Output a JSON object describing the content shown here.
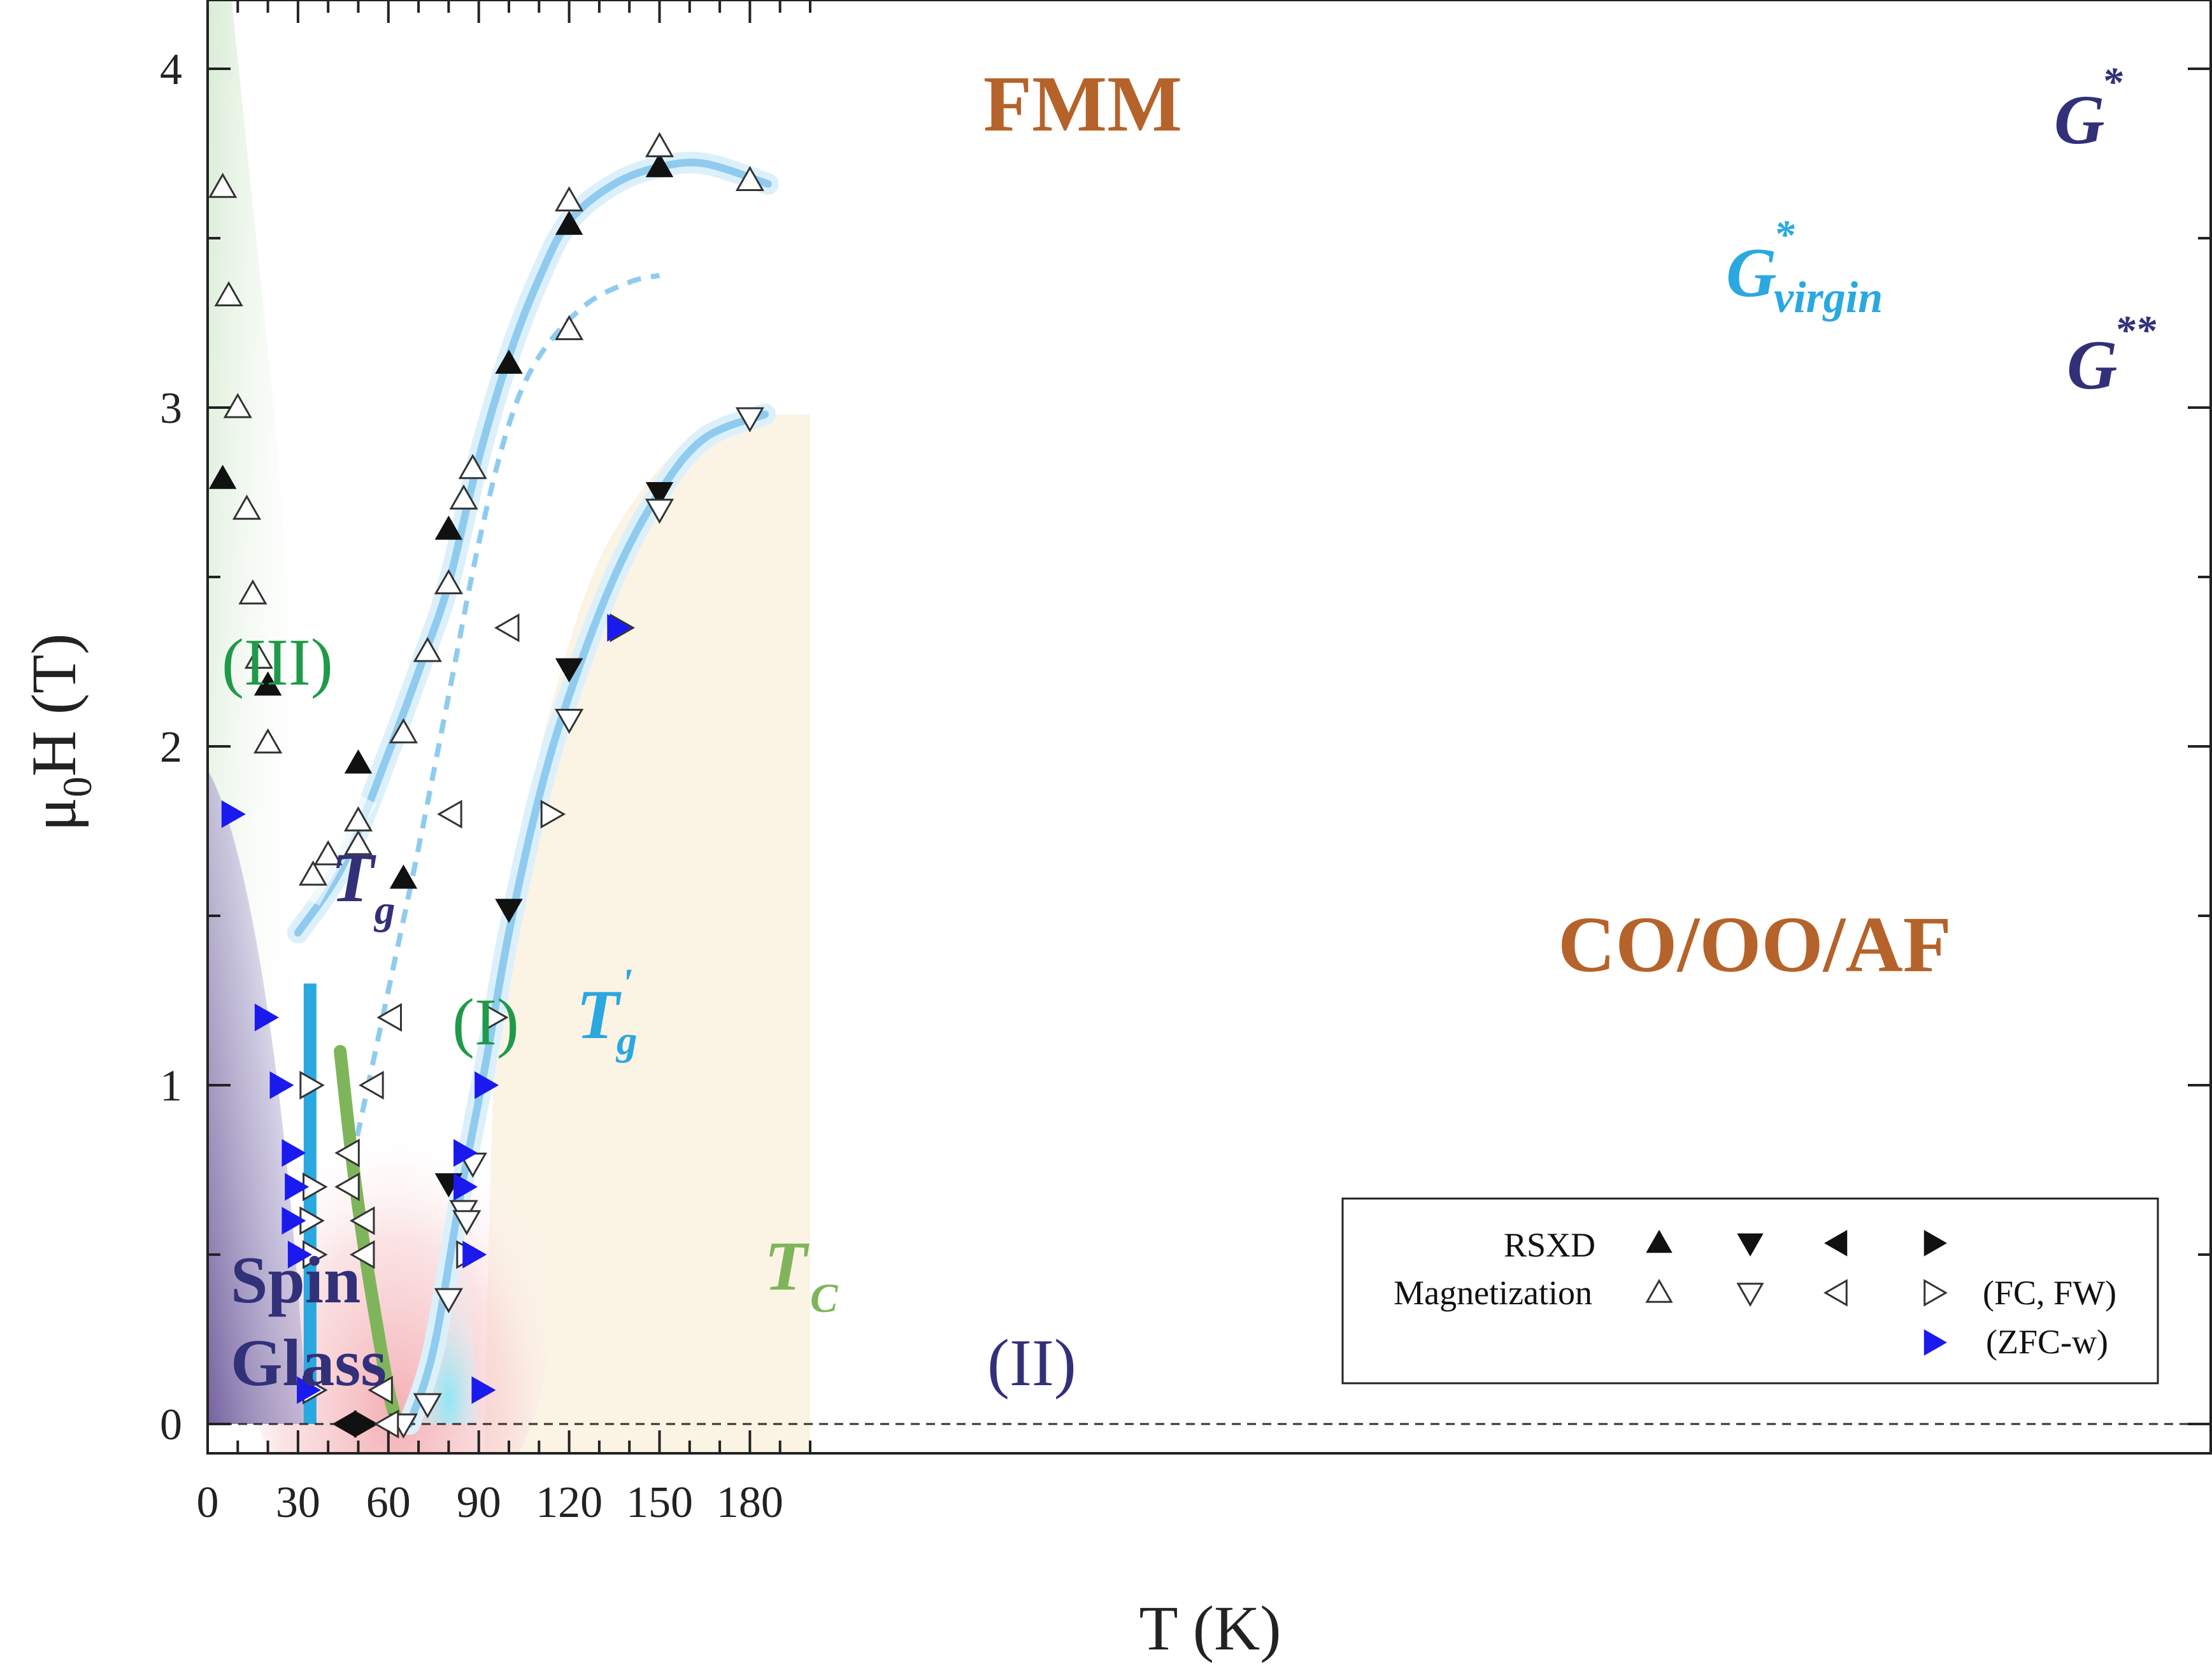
{
  "chart_data": {
    "type": "scatter",
    "title": "",
    "xlabel": "T (K)",
    "ylabel": "μ0H (T)",
    "ylabel_main": "μ",
    "ylabel_sub": "0",
    "ylabel_rest": "H (T)",
    "xlim": [
      0,
      200
    ],
    "ylim": [
      -0.08,
      4.2
    ],
    "xticks": [
      0,
      30,
      60,
      90,
      120,
      150,
      180
    ],
    "xtick_labels": [
      "0",
      "30",
      "60",
      "90",
      "120",
      "150",
      "180"
    ],
    "yticks": [
      0,
      1,
      2,
      3,
      4
    ],
    "ytick_labels": [
      "0",
      "1",
      "2",
      "3",
      "4"
    ],
    "grid": false,
    "regions": {
      "fmm": "FMM",
      "coooaf": "CO/OO/AF",
      "spin_glass_1": "Spin",
      "spin_glass_2": "Glass",
      "region_iii": "(III)",
      "region_i": "(I)",
      "region_ii": "(II)"
    },
    "line_labels": {
      "g_star": "G",
      "g_star_sup": "*",
      "g_virgin": "G",
      "g_virgin_sup": "*",
      "g_virgin_sub": "virgin",
      "g_star_star": "G",
      "g_star_star_sup": "**",
      "tg": "T",
      "tg_sub": "g",
      "tg_prime": "T",
      "tg_prime_sup": "'",
      "tg_prime_sub": "g",
      "tc": "T",
      "tc_sub": "C"
    },
    "legend": {
      "position": "bottom-right",
      "row_rsxd": "RSXD",
      "row_mag": "Magnetization",
      "mag_note": "(FC, FW)",
      "zfc_note": "(ZFC-w)"
    },
    "colors": {
      "region_text": "#b5632a",
      "dark_purple": "#33307a",
      "green": "#1f9a4a",
      "light_blue": "#2aa8e0",
      "line_blue": "#8fcbef",
      "tc_green": "#7fb55a",
      "zfc_blue": "#1a1aee"
    },
    "lines": {
      "g_star": [
        [
          30,
          1.45
        ],
        [
          45,
          1.65
        ],
        [
          60,
          1.98
        ],
        [
          72,
          2.27
        ],
        [
          80,
          2.48
        ],
        [
          90,
          2.85
        ],
        [
          100,
          3.15
        ],
        [
          110,
          3.38
        ],
        [
          120,
          3.55
        ],
        [
          135,
          3.66
        ],
        [
          150,
          3.71
        ],
        [
          165,
          3.72
        ],
        [
          186,
          3.66
        ]
      ],
      "g_virgin": [
        [
          48,
          0.78
        ],
        [
          60,
          1.28
        ],
        [
          70,
          1.7
        ],
        [
          80,
          2.15
        ],
        [
          90,
          2.6
        ],
        [
          100,
          2.95
        ],
        [
          110,
          3.15
        ],
        [
          125,
          3.3
        ],
        [
          140,
          3.37
        ],
        [
          150,
          3.39
        ]
      ],
      "g_star_star": [
        [
          67,
          0
        ],
        [
          75,
          0.22
        ],
        [
          84,
          0.68
        ],
        [
          92,
          1.05
        ],
        [
          100,
          1.45
        ],
        [
          110,
          1.85
        ],
        [
          120,
          2.15
        ],
        [
          135,
          2.5
        ],
        [
          150,
          2.75
        ],
        [
          165,
          2.91
        ],
        [
          185,
          2.98
        ]
      ],
      "tg_prime": [
        [
          34,
          0
        ],
        [
          34,
          1.3
        ]
      ],
      "tc": [
        [
          44,
          1.1
        ],
        [
          48,
          0.78
        ],
        [
          52,
          0.52
        ],
        [
          56,
          0.3
        ],
        [
          60,
          0.1
        ],
        [
          63,
          0
        ]
      ]
    },
    "series": [
      {
        "name": "RSXD",
        "marker": "triangle-up",
        "fill": "filled",
        "x": [
          5,
          20,
          50,
          65,
          80,
          100,
          120,
          150
        ],
        "y": [
          2.79,
          2.18,
          1.95,
          1.61,
          2.64,
          3.13,
          3.54,
          3.71
        ]
      },
      {
        "name": "RSXD",
        "marker": "triangle-down",
        "fill": "filled",
        "x": [
          80,
          100,
          120,
          150
        ],
        "y": [
          0.71,
          1.52,
          2.23,
          2.75
        ]
      },
      {
        "name": "RSXD",
        "marker": "triangle-left",
        "fill": "filled",
        "x": [
          46
        ],
        "y": [
          0
        ]
      },
      {
        "name": "RSXD",
        "marker": "triangle-right",
        "fill": "filled",
        "x": [
          52
        ],
        "y": [
          0
        ]
      },
      {
        "name": "Magnetization",
        "marker": "triangle-up",
        "fill": "open",
        "x": [
          5,
          7,
          10,
          13,
          15,
          17,
          20,
          35,
          40,
          50,
          50,
          65,
          73,
          80,
          85,
          88,
          120,
          120,
          150,
          180
        ],
        "y": [
          3.65,
          3.33,
          3.0,
          2.7,
          2.45,
          2.26,
          2.01,
          1.62,
          1.68,
          1.78,
          1.71,
          2.04,
          2.28,
          2.48,
          2.73,
          2.82,
          3.61,
          3.23,
          3.77,
          3.67
        ]
      },
      {
        "name": "Magnetization",
        "marker": "triangle-down",
        "fill": "open",
        "x": [
          65,
          73,
          80,
          85,
          86,
          88,
          120,
          150,
          180
        ],
        "y": [
          0,
          0.06,
          0.37,
          0.63,
          0.6,
          0.77,
          2.08,
          2.7,
          2.97
        ]
      },
      {
        "name": "Magnetization",
        "marker": "triangle-left",
        "fill": "open",
        "x": [
          47,
          47,
          52,
          52,
          55,
          58,
          60,
          61,
          81,
          100
        ],
        "y": [
          0.8,
          0.7,
          0.6,
          0.5,
          1.0,
          0.1,
          0.0,
          1.2,
          1.8,
          2.35
        ]
      },
      {
        "name": "Magnetization",
        "marker": "triangle-right",
        "fill": "open",
        "x": [
          34,
          34,
          35,
          35,
          35,
          86,
          95,
          114,
          137
        ],
        "y": [
          1.0,
          0.6,
          0.5,
          0.7,
          0.1,
          0.5,
          1.2,
          1.8,
          2.35
        ]
      },
      {
        "name": "(ZFC-w)",
        "marker": "triangle-right",
        "fill": "blue",
        "x": [
          8,
          19,
          24,
          28,
          29,
          28,
          30,
          33,
          85,
          85,
          88,
          92,
          91,
          136
        ],
        "y": [
          1.8,
          1.2,
          1.0,
          0.8,
          0.7,
          0.6,
          0.5,
          0.1,
          0.8,
          0.7,
          0.5,
          1.0,
          0.1,
          2.35
        ]
      }
    ]
  }
}
